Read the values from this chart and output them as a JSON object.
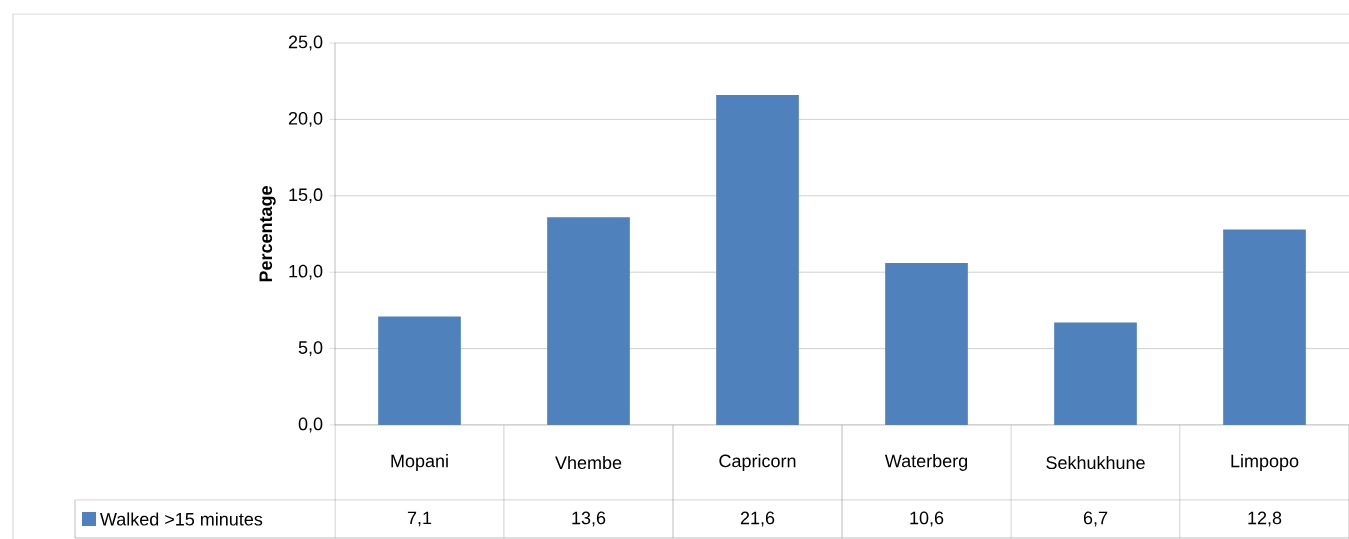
{
  "chart_data": {
    "type": "bar",
    "ylabel": "Percentage",
    "categories": [
      "Mopani",
      "Vhembe",
      "Capricorn",
      "Waterberg",
      "Sekhukhune",
      "Limpopo"
    ],
    "series": [
      {
        "name": "Walked >15 minutes",
        "color": "#4f81bd",
        "values": [
          7.1,
          13.6,
          21.6,
          10.6,
          6.7,
          12.8
        ],
        "value_labels": [
          "7,1",
          "13,6",
          "21,6",
          "10,6",
          "6,7",
          "12,8"
        ]
      }
    ],
    "ylim": [
      0,
      25
    ],
    "yticks": [
      {
        "value": 0,
        "label": "0,0"
      },
      {
        "value": 5,
        "label": "5,0"
      },
      {
        "value": 10,
        "label": "10,0"
      },
      {
        "value": 15,
        "label": "15,0"
      },
      {
        "value": 20,
        "label": "20,0"
      },
      {
        "value": 25,
        "label": "25,0"
      }
    ],
    "grid": "y",
    "legend": "bottom left"
  }
}
